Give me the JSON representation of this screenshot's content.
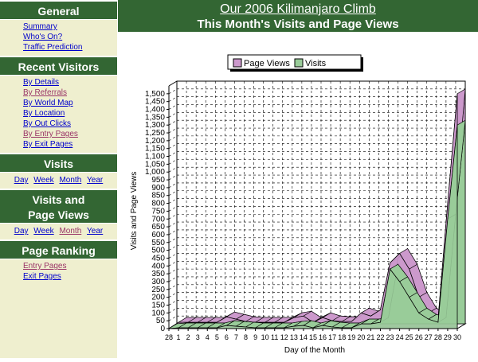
{
  "sidebar": {
    "general": {
      "title": "General",
      "links": [
        "Summary",
        "Who's On?",
        "Traffic Prediction"
      ]
    },
    "recent": {
      "title": "Recent Visitors",
      "links": [
        "By Details",
        "By Referrals",
        "By World Map",
        "By Location",
        "By Out Clicks",
        "By Entry Pages",
        "By Exit Pages"
      ]
    },
    "visits": {
      "title": "Visits",
      "links": [
        "Day",
        "Week",
        "Month",
        "Year"
      ]
    },
    "visits_pv": {
      "title_line1": "Visits and",
      "title_line2": "Page Views",
      "links": [
        "Day",
        "Week",
        "Month",
        "Year"
      ]
    },
    "ranking": {
      "title": "Page Ranking",
      "links": [
        "Entry Pages",
        "Exit Pages"
      ]
    }
  },
  "header": {
    "site_title": "Our 2006 Kilimanjaro Climb",
    "page_title": "This Month's Visits and Page Views"
  },
  "colors": {
    "page_views": "#cc99cc",
    "visits": "#99cc99",
    "nav_bg": "#336633",
    "sidebar_bg": "#efefcf"
  },
  "chart_data": {
    "type": "area",
    "xlabel": "Day of the Month",
    "ylabel": "Visits and Page Views",
    "x": [
      "28",
      "1",
      "2",
      "3",
      "4",
      "5",
      "6",
      "7",
      "8",
      "9",
      "10",
      "11",
      "12",
      "13",
      "14",
      "15",
      "16",
      "17",
      "18",
      "19",
      "20",
      "21",
      "22",
      "23",
      "24",
      "25",
      "26",
      "27",
      "28",
      "29",
      "30"
    ],
    "ylim": [
      0,
      1550
    ],
    "yticks": [
      0,
      50,
      100,
      150,
      200,
      250,
      300,
      350,
      400,
      450,
      500,
      550,
      600,
      650,
      700,
      750,
      800,
      850,
      900,
      950,
      1000,
      1050,
      1100,
      1150,
      1200,
      1250,
      1300,
      1350,
      1400,
      1450,
      1500
    ],
    "grid": true,
    "legend_position": "top",
    "series": [
      {
        "name": "Page Views",
        "values": [
          0,
          40,
          40,
          40,
          40,
          40,
          75,
          60,
          45,
          40,
          40,
          40,
          40,
          70,
          80,
          40,
          70,
          50,
          45,
          45,
          100,
          80,
          120,
          420,
          480,
          380,
          200,
          100,
          60,
          800,
          1500
        ]
      },
      {
        "name": "Visits",
        "values": [
          0,
          5,
          5,
          5,
          5,
          5,
          20,
          15,
          10,
          5,
          5,
          5,
          5,
          15,
          20,
          5,
          20,
          10,
          5,
          5,
          30,
          30,
          40,
          380,
          300,
          200,
          100,
          60,
          40,
          700,
          1300
        ]
      }
    ]
  }
}
